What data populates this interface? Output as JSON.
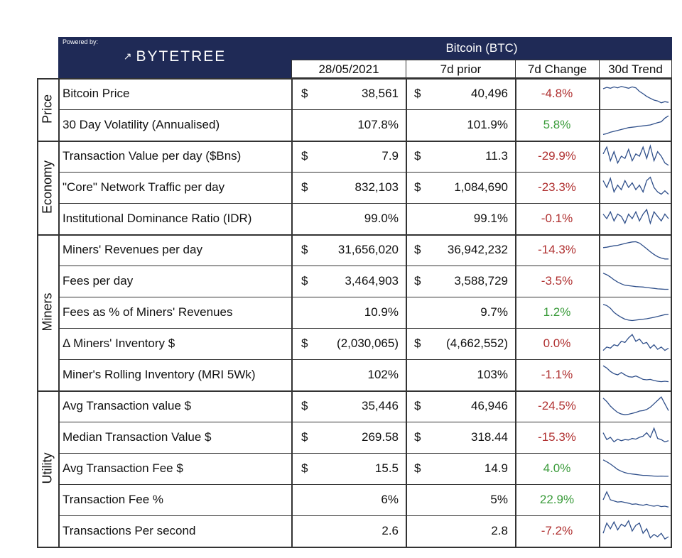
{
  "header": {
    "powered_by": "Powered by:",
    "brand": "BYTETREE",
    "brand_icon": "bytetree-logo-icon",
    "coin": "Bitcoin (BTC)",
    "columns": [
      "28/05/2021",
      "7d prior",
      "7d Change",
      "30d Trend"
    ]
  },
  "colors": {
    "header_bg": "#1f2a56",
    "negative": "#b03030",
    "positive": "#3a9b3a",
    "sparkline": "#2f4f8a"
  },
  "sections": [
    {
      "name": "Price",
      "rows": [
        {
          "label": "Bitcoin Price",
          "cur_sym": "$",
          "current": "38,561",
          "prior_sym": "$",
          "prior": "40,496",
          "change": "-4.8%",
          "sign": "neg",
          "trend": [
            0.72,
            0.78,
            0.74,
            0.8,
            0.76,
            0.82,
            0.78,
            0.74,
            0.8,
            0.76,
            0.6,
            0.5,
            0.38,
            0.3,
            0.22,
            0.18,
            0.1,
            0.15,
            0.12
          ]
        },
        {
          "label": "30 Day Volatility (Annualised)",
          "cur_sym": "",
          "current": "107.8%",
          "prior_sym": "",
          "prior": "101.9%",
          "change": "5.8%",
          "sign": "pos",
          "trend": [
            0.08,
            0.12,
            0.18,
            0.22,
            0.26,
            0.3,
            0.34,
            0.38,
            0.4,
            0.42,
            0.44,
            0.46,
            0.48,
            0.5,
            0.55,
            0.6,
            0.64,
            0.8,
            0.9
          ]
        }
      ]
    },
    {
      "name": "Economy",
      "rows": [
        {
          "label": "Transaction Value per day ($Bns)",
          "cur_sym": "$",
          "current": "7.9",
          "prior_sym": "$",
          "prior": "11.3",
          "change": "-29.9%",
          "sign": "neg",
          "trend": [
            0.6,
            0.9,
            0.3,
            0.7,
            0.2,
            0.5,
            0.4,
            0.8,
            0.3,
            0.6,
            0.5,
            0.9,
            0.4,
            0.95,
            0.3,
            0.7,
            0.5,
            0.2,
            0.1
          ]
        },
        {
          "label": "\"Core\" Network Traffic per day",
          "cur_sym": "$",
          "current": "832,103",
          "prior_sym": "$",
          "prior": "1,084,690",
          "change": "-23.3%",
          "sign": "neg",
          "trend": [
            0.8,
            0.5,
            0.9,
            0.3,
            0.6,
            0.4,
            0.8,
            0.5,
            0.7,
            0.4,
            0.6,
            0.3,
            0.8,
            0.95,
            0.5,
            0.3,
            0.2,
            0.35,
            0.2
          ]
        },
        {
          "label": "Institutional Dominance Ratio (IDR)",
          "cur_sym": "",
          "current": "99.0%",
          "prior_sym": "",
          "prior": "99.1%",
          "change": "-0.1%",
          "sign": "neg",
          "trend": [
            0.7,
            0.5,
            0.8,
            0.4,
            0.7,
            0.6,
            0.3,
            0.7,
            0.5,
            0.8,
            0.4,
            0.7,
            0.9,
            0.3,
            0.8,
            0.6,
            0.4,
            0.7,
            0.5
          ]
        }
      ]
    },
    {
      "name": "Miners",
      "rows": [
        {
          "label": "Miners' Revenues per day",
          "cur_sym": "$",
          "current": "31,656,020",
          "prior_sym": "$",
          "prior": "36,942,232",
          "change": "-14.3%",
          "sign": "neg",
          "trend": [
            0.6,
            0.62,
            0.65,
            0.68,
            0.7,
            0.74,
            0.78,
            0.82,
            0.85,
            0.86,
            0.8,
            0.68,
            0.55,
            0.42,
            0.3,
            0.2,
            0.14,
            0.1,
            0.1
          ]
        },
        {
          "label": "Fees per day",
          "cur_sym": "$",
          "current": "3,464,903",
          "prior_sym": "$",
          "prior": "3,588,729",
          "change": "-3.5%",
          "sign": "neg",
          "trend": [
            0.85,
            0.78,
            0.68,
            0.56,
            0.46,
            0.38,
            0.32,
            0.3,
            0.28,
            0.26,
            0.25,
            0.24,
            0.22,
            0.2,
            0.18,
            0.16,
            0.15,
            0.14,
            0.14
          ]
        },
        {
          "label": "Fees as % of Miners' Revenues",
          "cur_sym": "",
          "current": "10.9%",
          "prior_sym": "",
          "prior": "9.7%",
          "change": "1.2%",
          "sign": "pos",
          "trend": [
            0.85,
            0.8,
            0.68,
            0.5,
            0.38,
            0.28,
            0.2,
            0.16,
            0.14,
            0.16,
            0.18,
            0.2,
            0.22,
            0.25,
            0.28,
            0.32,
            0.36,
            0.4,
            0.42
          ]
        },
        {
          "label": "Δ Miners' Inventory $",
          "cur_sym": "$",
          "current": "(2,030,065)",
          "prior_sym": "$",
          "prior": "(4,662,552)",
          "change": "0.0%",
          "sign": "neg",
          "trend": [
            0.2,
            0.35,
            0.3,
            0.45,
            0.4,
            0.6,
            0.55,
            0.75,
            0.9,
            0.6,
            0.7,
            0.5,
            0.55,
            0.3,
            0.45,
            0.25,
            0.35,
            0.2,
            0.3
          ]
        },
        {
          "label": "Miner's Rolling Inventory (MRI 5Wk)",
          "cur_sym": "",
          "current": "102%",
          "prior_sym": "",
          "prior": "103%",
          "change": "-1.1%",
          "sign": "neg",
          "trend": [
            0.9,
            0.8,
            0.65,
            0.55,
            0.5,
            0.6,
            0.5,
            0.42,
            0.4,
            0.45,
            0.38,
            0.3,
            0.28,
            0.3,
            0.25,
            0.22,
            0.2,
            0.22,
            0.2
          ]
        }
      ]
    },
    {
      "name": "Utility",
      "rows": [
        {
          "label": "Avg Transaction value $",
          "cur_sym": "$",
          "current": "35,446",
          "prior_sym": "$",
          "prior": "46,946",
          "change": "-24.5%",
          "sign": "neg",
          "trend": [
            0.85,
            0.7,
            0.5,
            0.35,
            0.22,
            0.15,
            0.12,
            0.14,
            0.18,
            0.22,
            0.28,
            0.3,
            0.35,
            0.45,
            0.6,
            0.75,
            0.9,
            0.6,
            0.3
          ]
        },
        {
          "label": "Median Transaction Value $",
          "cur_sym": "$",
          "current": "269.58",
          "prior_sym": "$",
          "prior": "318.44",
          "change": "-15.3%",
          "sign": "neg",
          "trend": [
            0.7,
            0.4,
            0.5,
            0.3,
            0.42,
            0.35,
            0.4,
            0.38,
            0.45,
            0.42,
            0.5,
            0.55,
            0.7,
            0.5,
            0.9,
            0.45,
            0.4,
            0.3,
            0.35
          ]
        },
        {
          "label": "Avg Transaction Fee $",
          "cur_sym": "$",
          "current": "15.5",
          "prior_sym": "$",
          "prior": "14.9",
          "change": "4.0%",
          "sign": "pos",
          "trend": [
            0.88,
            0.8,
            0.7,
            0.58,
            0.46,
            0.38,
            0.32,
            0.28,
            0.26,
            0.24,
            0.22,
            0.2,
            0.2,
            0.18,
            0.17,
            0.16,
            0.17,
            0.16,
            0.16
          ]
        },
        {
          "label": "Transaction Fee %",
          "cur_sym": "",
          "current": "6%",
          "prior_sym": "",
          "prior": "5%",
          "change": "22.9%",
          "sign": "pos",
          "trend": [
            0.5,
            0.85,
            0.5,
            0.45,
            0.4,
            0.42,
            0.38,
            0.35,
            0.3,
            0.32,
            0.28,
            0.26,
            0.3,
            0.24,
            0.22,
            0.25,
            0.2,
            0.22,
            0.18
          ]
        },
        {
          "label": "Transactions Per second",
          "cur_sym": "",
          "current": "2.6",
          "prior_sym": "",
          "prior": "2.8",
          "change": "-7.2%",
          "sign": "neg",
          "trend": [
            0.4,
            0.85,
            0.6,
            0.9,
            0.55,
            0.8,
            0.7,
            0.95,
            0.5,
            0.75,
            0.85,
            0.4,
            0.6,
            0.2,
            0.35,
            0.25,
            0.4,
            0.15,
            0.25
          ]
        }
      ]
    }
  ]
}
